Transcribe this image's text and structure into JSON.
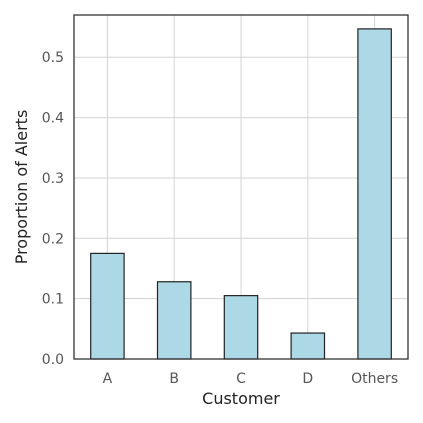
{
  "chart_data": {
    "type": "bar",
    "title": "",
    "xlabel": "Customer",
    "ylabel": "Proportion of Alerts",
    "categories": [
      "A",
      "B",
      "C",
      "D",
      "Others"
    ],
    "values": [
      0.175,
      0.128,
      0.105,
      0.043,
      0.547
    ],
    "ylim": [
      0.0,
      0.57
    ],
    "yticks": [
      0.0,
      0.1,
      0.2,
      0.3,
      0.4,
      0.5
    ],
    "ytick_labels": [
      "0.0",
      "0.1",
      "0.2",
      "0.3",
      "0.4",
      "0.5"
    ],
    "grid": true,
    "bar_color": "#add8e6",
    "bar_edge_color": "#222222"
  }
}
